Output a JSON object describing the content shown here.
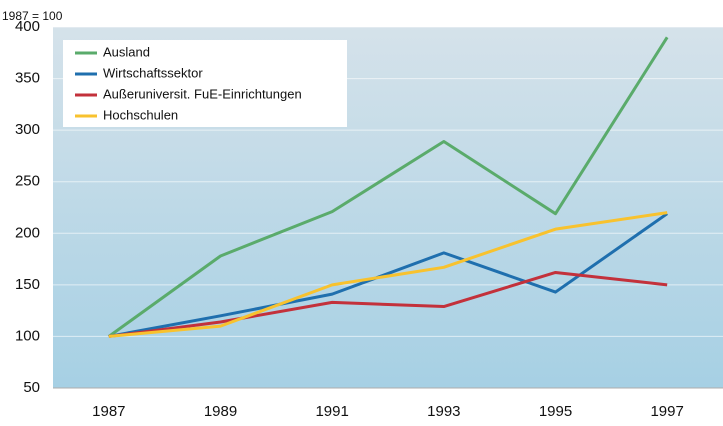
{
  "chart_data": {
    "type": "line",
    "annotation": "1987 = 100",
    "categories": [
      "1987",
      "1989",
      "1991",
      "1993",
      "1995",
      "1997"
    ],
    "series": [
      {
        "name": "Ausland",
        "color": "#5aab6b",
        "values": [
          100,
          178,
          221,
          289,
          219,
          390
        ]
      },
      {
        "name": "Wirtschaftssektor",
        "color": "#1f6fae",
        "values": [
          100,
          120,
          141,
          181,
          143,
          219
        ]
      },
      {
        "name": "Außeruniversit. FuE-Einrichtungen",
        "color": "#c3313b",
        "values": [
          100,
          114,
          133,
          129,
          162,
          150
        ]
      },
      {
        "name": "Hochschulen",
        "color": "#f8c22e",
        "values": [
          100,
          110,
          150,
          167,
          204,
          220
        ]
      }
    ],
    "ylim": [
      50,
      400
    ],
    "yticks": [
      50,
      100,
      150,
      200,
      250,
      300,
      350,
      400
    ],
    "grid": true
  }
}
